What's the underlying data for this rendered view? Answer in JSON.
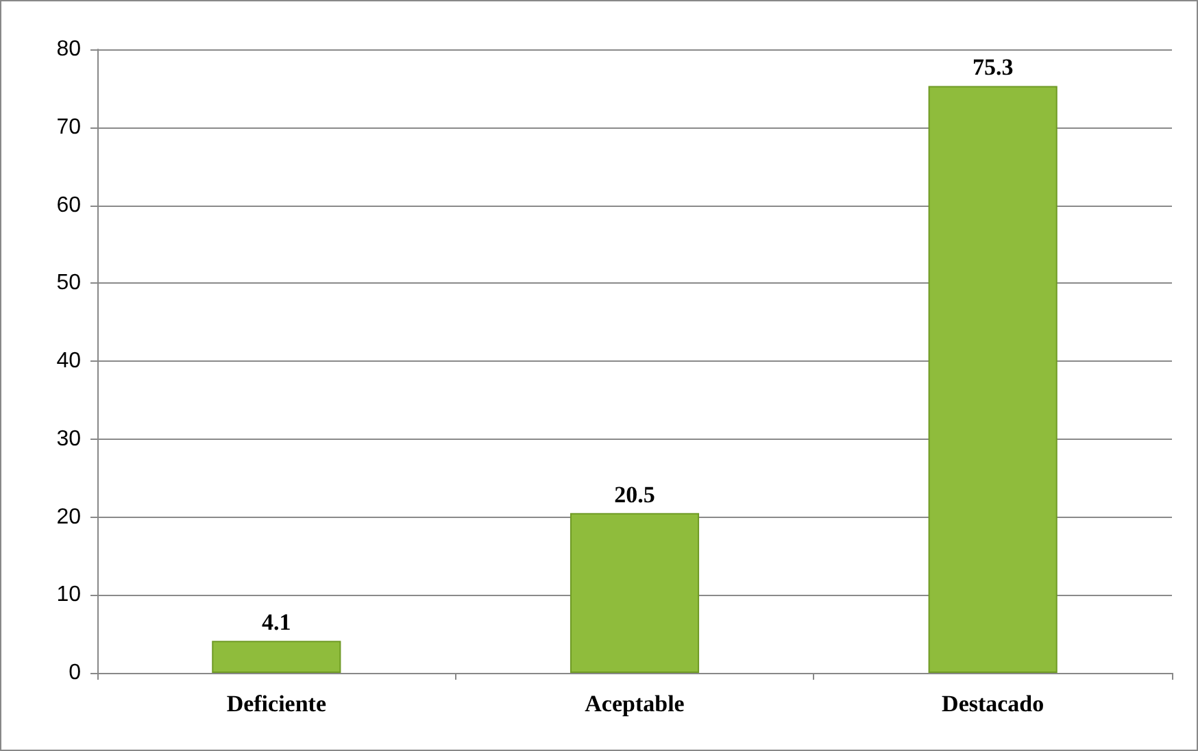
{
  "chart_data": {
    "type": "bar",
    "categories": [
      "Deficiente",
      "Aceptable",
      "Destacado"
    ],
    "values": [
      4.1,
      20.5,
      75.3
    ],
    "color": "#8fbc3c",
    "ylim": [
      0,
      80
    ],
    "yticks": [
      0,
      10,
      20,
      30,
      40,
      50,
      60,
      70,
      80
    ],
    "grid": "y",
    "data_labels": true
  }
}
